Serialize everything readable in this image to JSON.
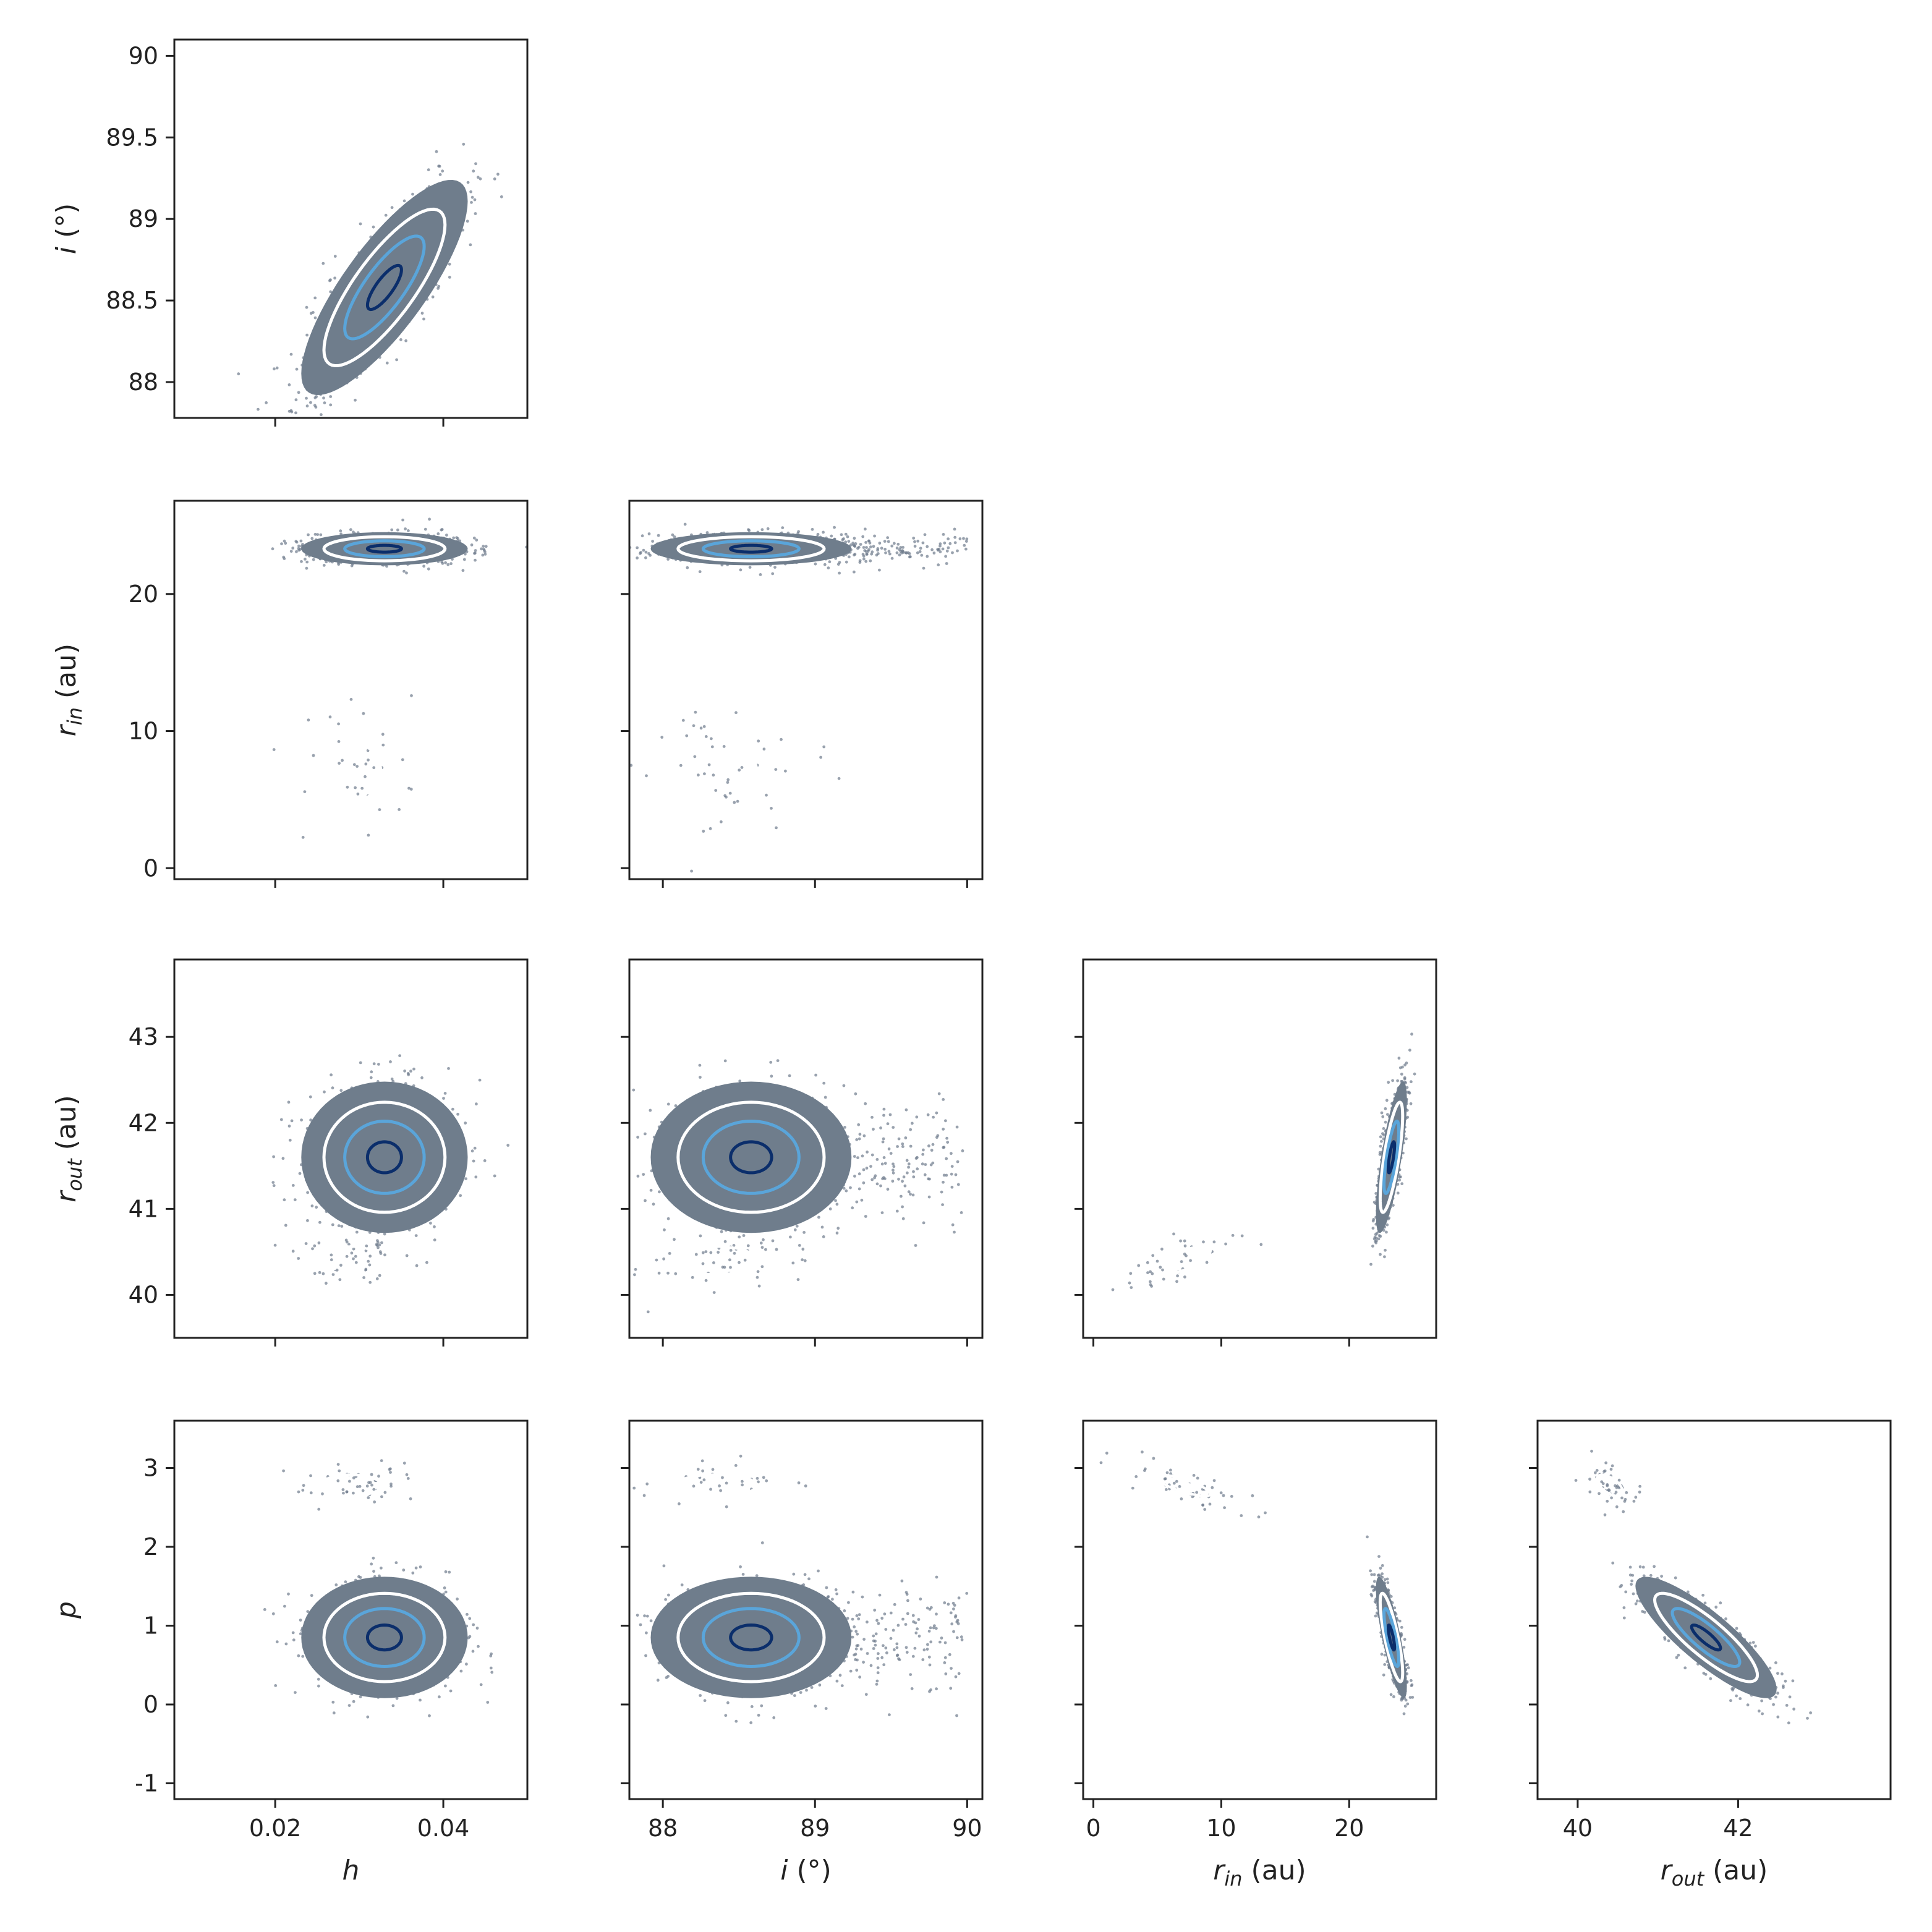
{
  "colors": {
    "scatter": "#6e7b8b",
    "cloud": "#6f7d8c",
    "contour_outer": "#ffffff",
    "contour_mid": "#5aa5da",
    "contour_inner": "#0b2e6b",
    "axis": "#222222"
  },
  "labels": {
    "h": "h",
    "i": "i (°)",
    "rin": "r_in (au)",
    "rout": "r_out (au)",
    "p": "p"
  },
  "chart_data": {
    "type": "scatter",
    "kind": "corner-plot",
    "parameters": [
      "h",
      "i",
      "rin",
      "rout",
      "p"
    ],
    "axes": {
      "h": {
        "range": [
          0.008,
          0.05
        ],
        "ticks": [
          0.02,
          0.04
        ],
        "tick_labels": [
          "0.02",
          "0.04"
        ]
      },
      "i": {
        "range": [
          87.78,
          90.1
        ],
        "ticks": [
          88,
          89,
          90
        ],
        "tick_labels": [
          "88",
          "89",
          "90"
        ],
        "row_ticks": [
          88,
          88.5,
          89,
          89.5,
          90
        ],
        "row_tick_labels": [
          "88",
          "88.5",
          "89",
          "89.5",
          "90"
        ]
      },
      "rin": {
        "range": [
          -0.8,
          26.8
        ],
        "ticks": [
          0,
          10,
          20
        ],
        "tick_labels": [
          "0",
          "10",
          "20"
        ]
      },
      "rout": {
        "range": [
          39.5,
          43.9
        ],
        "ticks": [
          40,
          41,
          42,
          43
        ],
        "tick_labels": [
          "40",
          "41",
          "42",
          "43"
        ],
        "col_ticks": [
          40,
          42
        ],
        "col_tick_labels": [
          "40",
          "42"
        ]
      },
      "p": {
        "range": [
          -1.2,
          3.6
        ],
        "ticks": [
          -1,
          0,
          1,
          2,
          3
        ],
        "tick_labels": [
          "-1",
          "0",
          "1",
          "2",
          "3"
        ]
      }
    },
    "clusters": {
      "h": {
        "main": {
          "mean": 0.033,
          "sd": 0.0045
        },
        "second": {
          "mean": 0.029,
          "sd": 0.004
        }
      },
      "i": {
        "main": {
          "mean": 88.58,
          "sd": 0.3,
          "tail_to": 90.0
        },
        "second": {
          "mean": 88.35,
          "sd": 0.3
        }
      },
      "rin": {
        "main": {
          "mean": 23.3,
          "sd": 0.55
        },
        "second": {
          "mean": 7.0,
          "sd": 2.4
        }
      },
      "rout": {
        "main": {
          "mean": 41.6,
          "sd": 0.4
        },
        "second": {
          "mean": 40.4,
          "sd": 0.18
        }
      },
      "p": {
        "main": {
          "mean": 0.85,
          "sd": 0.35
        },
        "second": {
          "mean": 2.78,
          "sd": 0.15
        }
      }
    },
    "correlations": {
      "h-i": 0.8,
      "rin-rout_main": 0.75,
      "rin-p_main": -0.8,
      "rout-p_main": -0.85,
      "rin-rout_second": 0.7,
      "rin-p_second": -0.8,
      "rout-p_second": -0.6
    },
    "mode_weight": {
      "main": 0.95,
      "second": 0.05
    },
    "contour_levels": [
      "outer",
      "mid",
      "inner"
    ],
    "grid": false
  }
}
